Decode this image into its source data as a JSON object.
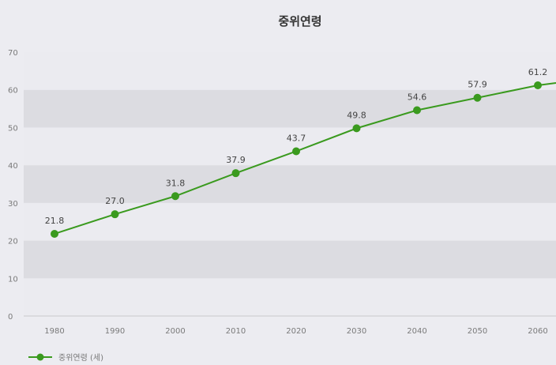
{
  "chart_data": {
    "type": "line",
    "title": "중위연령",
    "x": [
      "1980",
      "1990",
      "2000",
      "2010",
      "2020",
      "2030",
      "2040",
      "2050",
      "2060"
    ],
    "series": [
      {
        "name": "중위연령 (세)",
        "values": [
          21.8,
          27.0,
          31.8,
          37.9,
          43.7,
          49.8,
          54.6,
          57.9,
          61.2
        ],
        "color": "#3a9a1e"
      }
    ],
    "data_labels": [
      "21.8",
      "27.0",
      "31.8",
      "37.9",
      "43.7",
      "49.8",
      "54.6",
      "57.9",
      "61.2"
    ],
    "ylim": [
      0,
      70
    ],
    "yticks": [
      0,
      10,
      20,
      30,
      40,
      50,
      60,
      70
    ],
    "grid": "alternating horizontal bands",
    "legend_position": "bottom-left"
  }
}
